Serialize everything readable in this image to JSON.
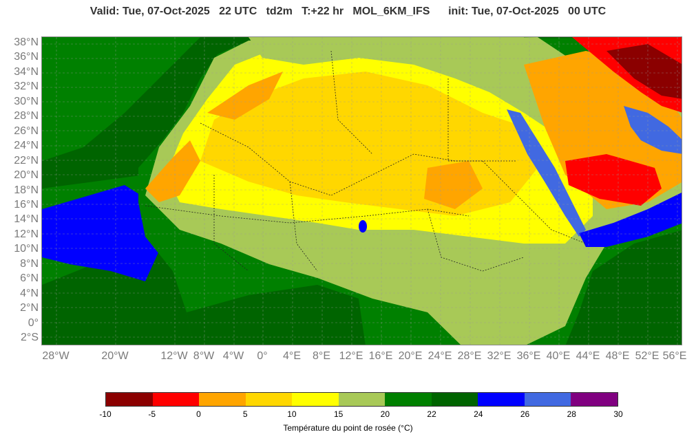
{
  "header": {
    "title": "Valid: Tue, 07-Oct-2025   22 UTC   td2m   T:+22 hr   MOL_6KM_IFS      init: Tue, 07-Oct-2025   00 UTC"
  },
  "map": {
    "lat_labels": [
      "38°N",
      "36°N",
      "34°N",
      "32°N",
      "30°N",
      "28°N",
      "26°N",
      "24°N",
      "22°N",
      "20°N",
      "18°N",
      "16°N",
      "14°N",
      "12°N",
      "10°N",
      "8°N",
      "6°N",
      "4°N",
      "2°N",
      "0°",
      "2°S"
    ],
    "lon_labels": [
      "28°W",
      "20°W",
      "12°W",
      "8°W",
      "4°W",
      "0°",
      "4°E",
      "8°E",
      "12°E",
      "16°E",
      "20°E",
      "24°E",
      "28°E",
      "32°E",
      "36°E",
      "40°E",
      "44°E",
      "48°E",
      "52°E",
      "56°E"
    ],
    "colors": {
      "ocean_deep": "#006400",
      "green": "#008000",
      "light_green": "#a8c957",
      "yellow": "#ffff00",
      "gold": "#ffd700",
      "orange": "#ffa500",
      "red": "#ff0000",
      "dark_red": "#8b0000",
      "blue": "#0000ff",
      "royal_blue": "#4169e1"
    }
  },
  "colorbar": {
    "title": "Température du point de rosée (°C)",
    "ticks": [
      "-10",
      "-5",
      "0",
      "5",
      "10",
      "15",
      "20",
      "22",
      "24",
      "26",
      "28",
      "30"
    ],
    "colors": [
      "#8b0000",
      "#ff0000",
      "#ffa500",
      "#ffd700",
      "#ffff00",
      "#a8c957",
      "#008000",
      "#006400",
      "#0000ff",
      "#4169e1",
      "#800080"
    ]
  }
}
